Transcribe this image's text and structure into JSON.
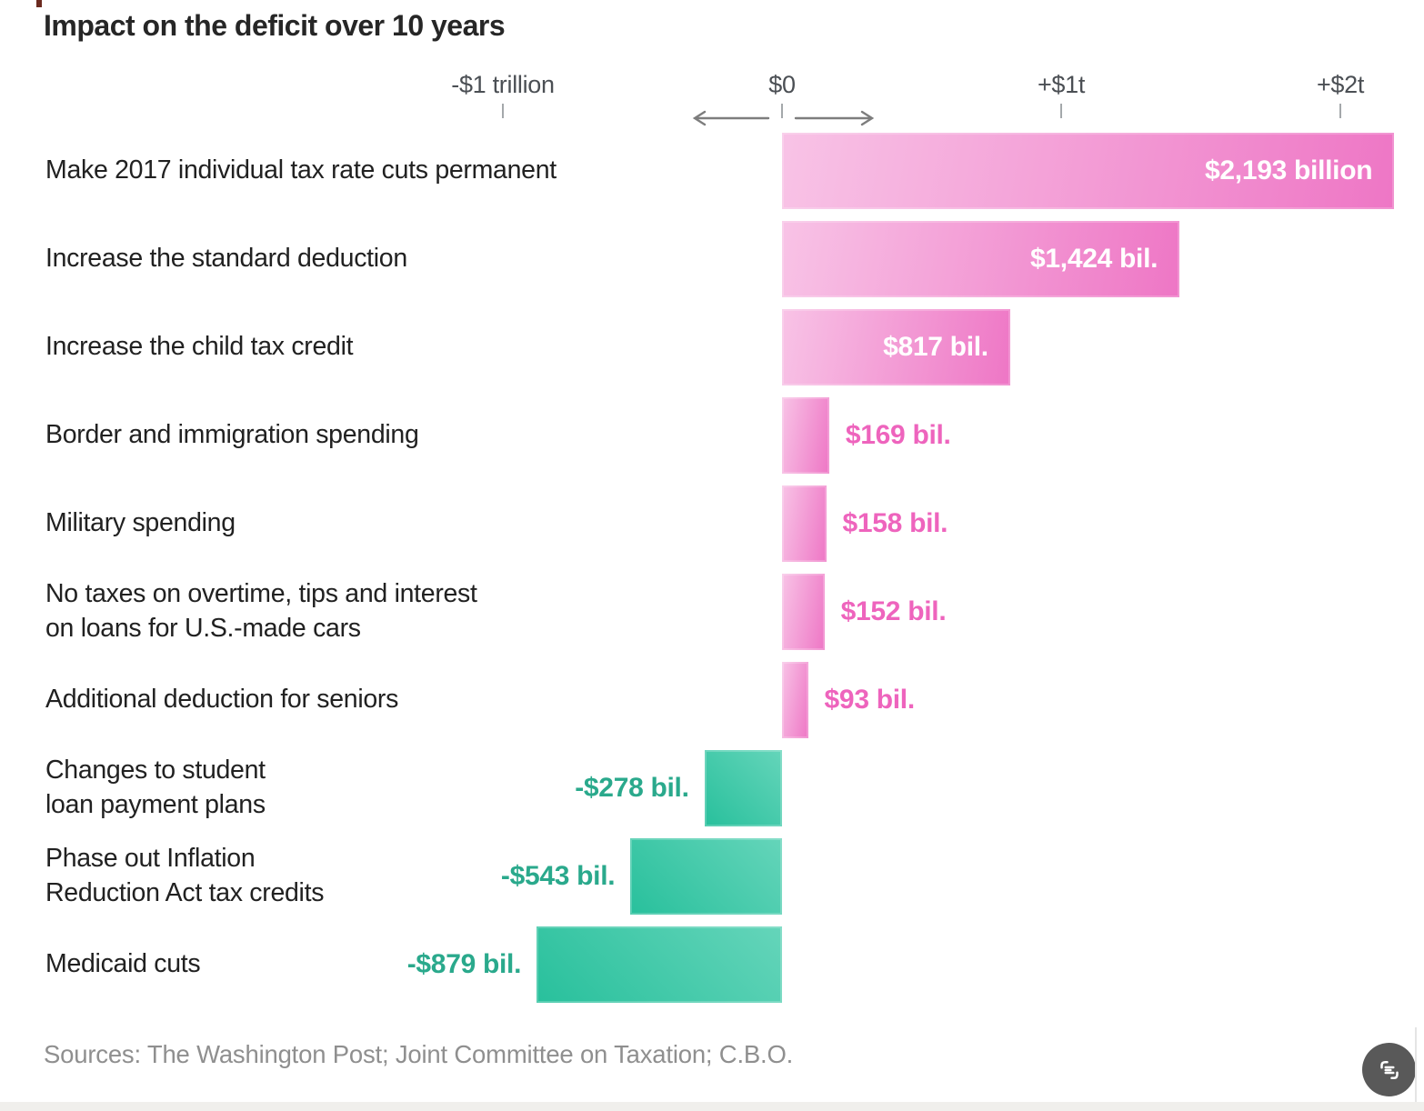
{
  "title": "Impact on the deficit over 10 years",
  "source": "Sources: The Washington Post; Joint Committee on Taxation; C.B.O.",
  "colors": {
    "pink_light": "#f8c3e6",
    "pink_dark": "#ee76c5",
    "pink_value_text": "#ee64bd",
    "green_light": "#65d5ba",
    "green_dark": "#28c09c",
    "green_value_text": "#2aa98c",
    "inside_value_text": "#ffffff"
  },
  "fab": {
    "icon": "summarize-icon"
  },
  "chart_data": {
    "type": "bar",
    "orientation": "horizontal-diverging",
    "title": "Impact on the deficit over 10 years",
    "unit": "billions of dollars over 10 years",
    "axis": {
      "range_billions": [
        -1000,
        2300
      ],
      "zero_arrows": true,
      "ticks": [
        {
          "value": -1000,
          "label": "-$1 trillion"
        },
        {
          "value": 0,
          "label": "$0"
        },
        {
          "value": 1000,
          "label": "+$1t"
        },
        {
          "value": 2000,
          "label": "+$2t"
        }
      ]
    },
    "rows": [
      {
        "label": "Make 2017 individual tax rate cuts permanent",
        "value": 2193,
        "value_label": "$2,193 billion",
        "color": "pink",
        "value_label_position": "inside"
      },
      {
        "label": "Increase the standard deduction",
        "value": 1424,
        "value_label": "$1,424 bil.",
        "color": "pink",
        "value_label_position": "inside"
      },
      {
        "label": "Increase the child tax credit",
        "value": 817,
        "value_label": "$817 bil.",
        "color": "pink",
        "value_label_position": "inside"
      },
      {
        "label": "Border and immigration spending",
        "value": 169,
        "value_label": "$169 bil.",
        "color": "pink",
        "value_label_position": "right"
      },
      {
        "label": "Military spending",
        "value": 158,
        "value_label": "$158 bil.",
        "color": "pink",
        "value_label_position": "right"
      },
      {
        "label": "No taxes on overtime, tips and interest\non loans for U.S.-made cars",
        "value": 152,
        "value_label": "$152 bil.",
        "color": "pink",
        "value_label_position": "right"
      },
      {
        "label": "Additional deduction for seniors",
        "value": 93,
        "value_label": "$93 bil.",
        "color": "pink",
        "value_label_position": "right"
      },
      {
        "label": "Changes to student\nloan payment plans",
        "value": -278,
        "value_label": "-$278 bil.",
        "color": "green",
        "value_label_position": "left"
      },
      {
        "label": "Phase out Inflation\nReduction Act tax credits",
        "value": -543,
        "value_label": "-$543 bil.",
        "color": "green",
        "value_label_position": "left"
      },
      {
        "label": "Medicaid cuts",
        "value": -879,
        "value_label": "-$879 bil.",
        "color": "green",
        "value_label_position": "left"
      }
    ]
  }
}
